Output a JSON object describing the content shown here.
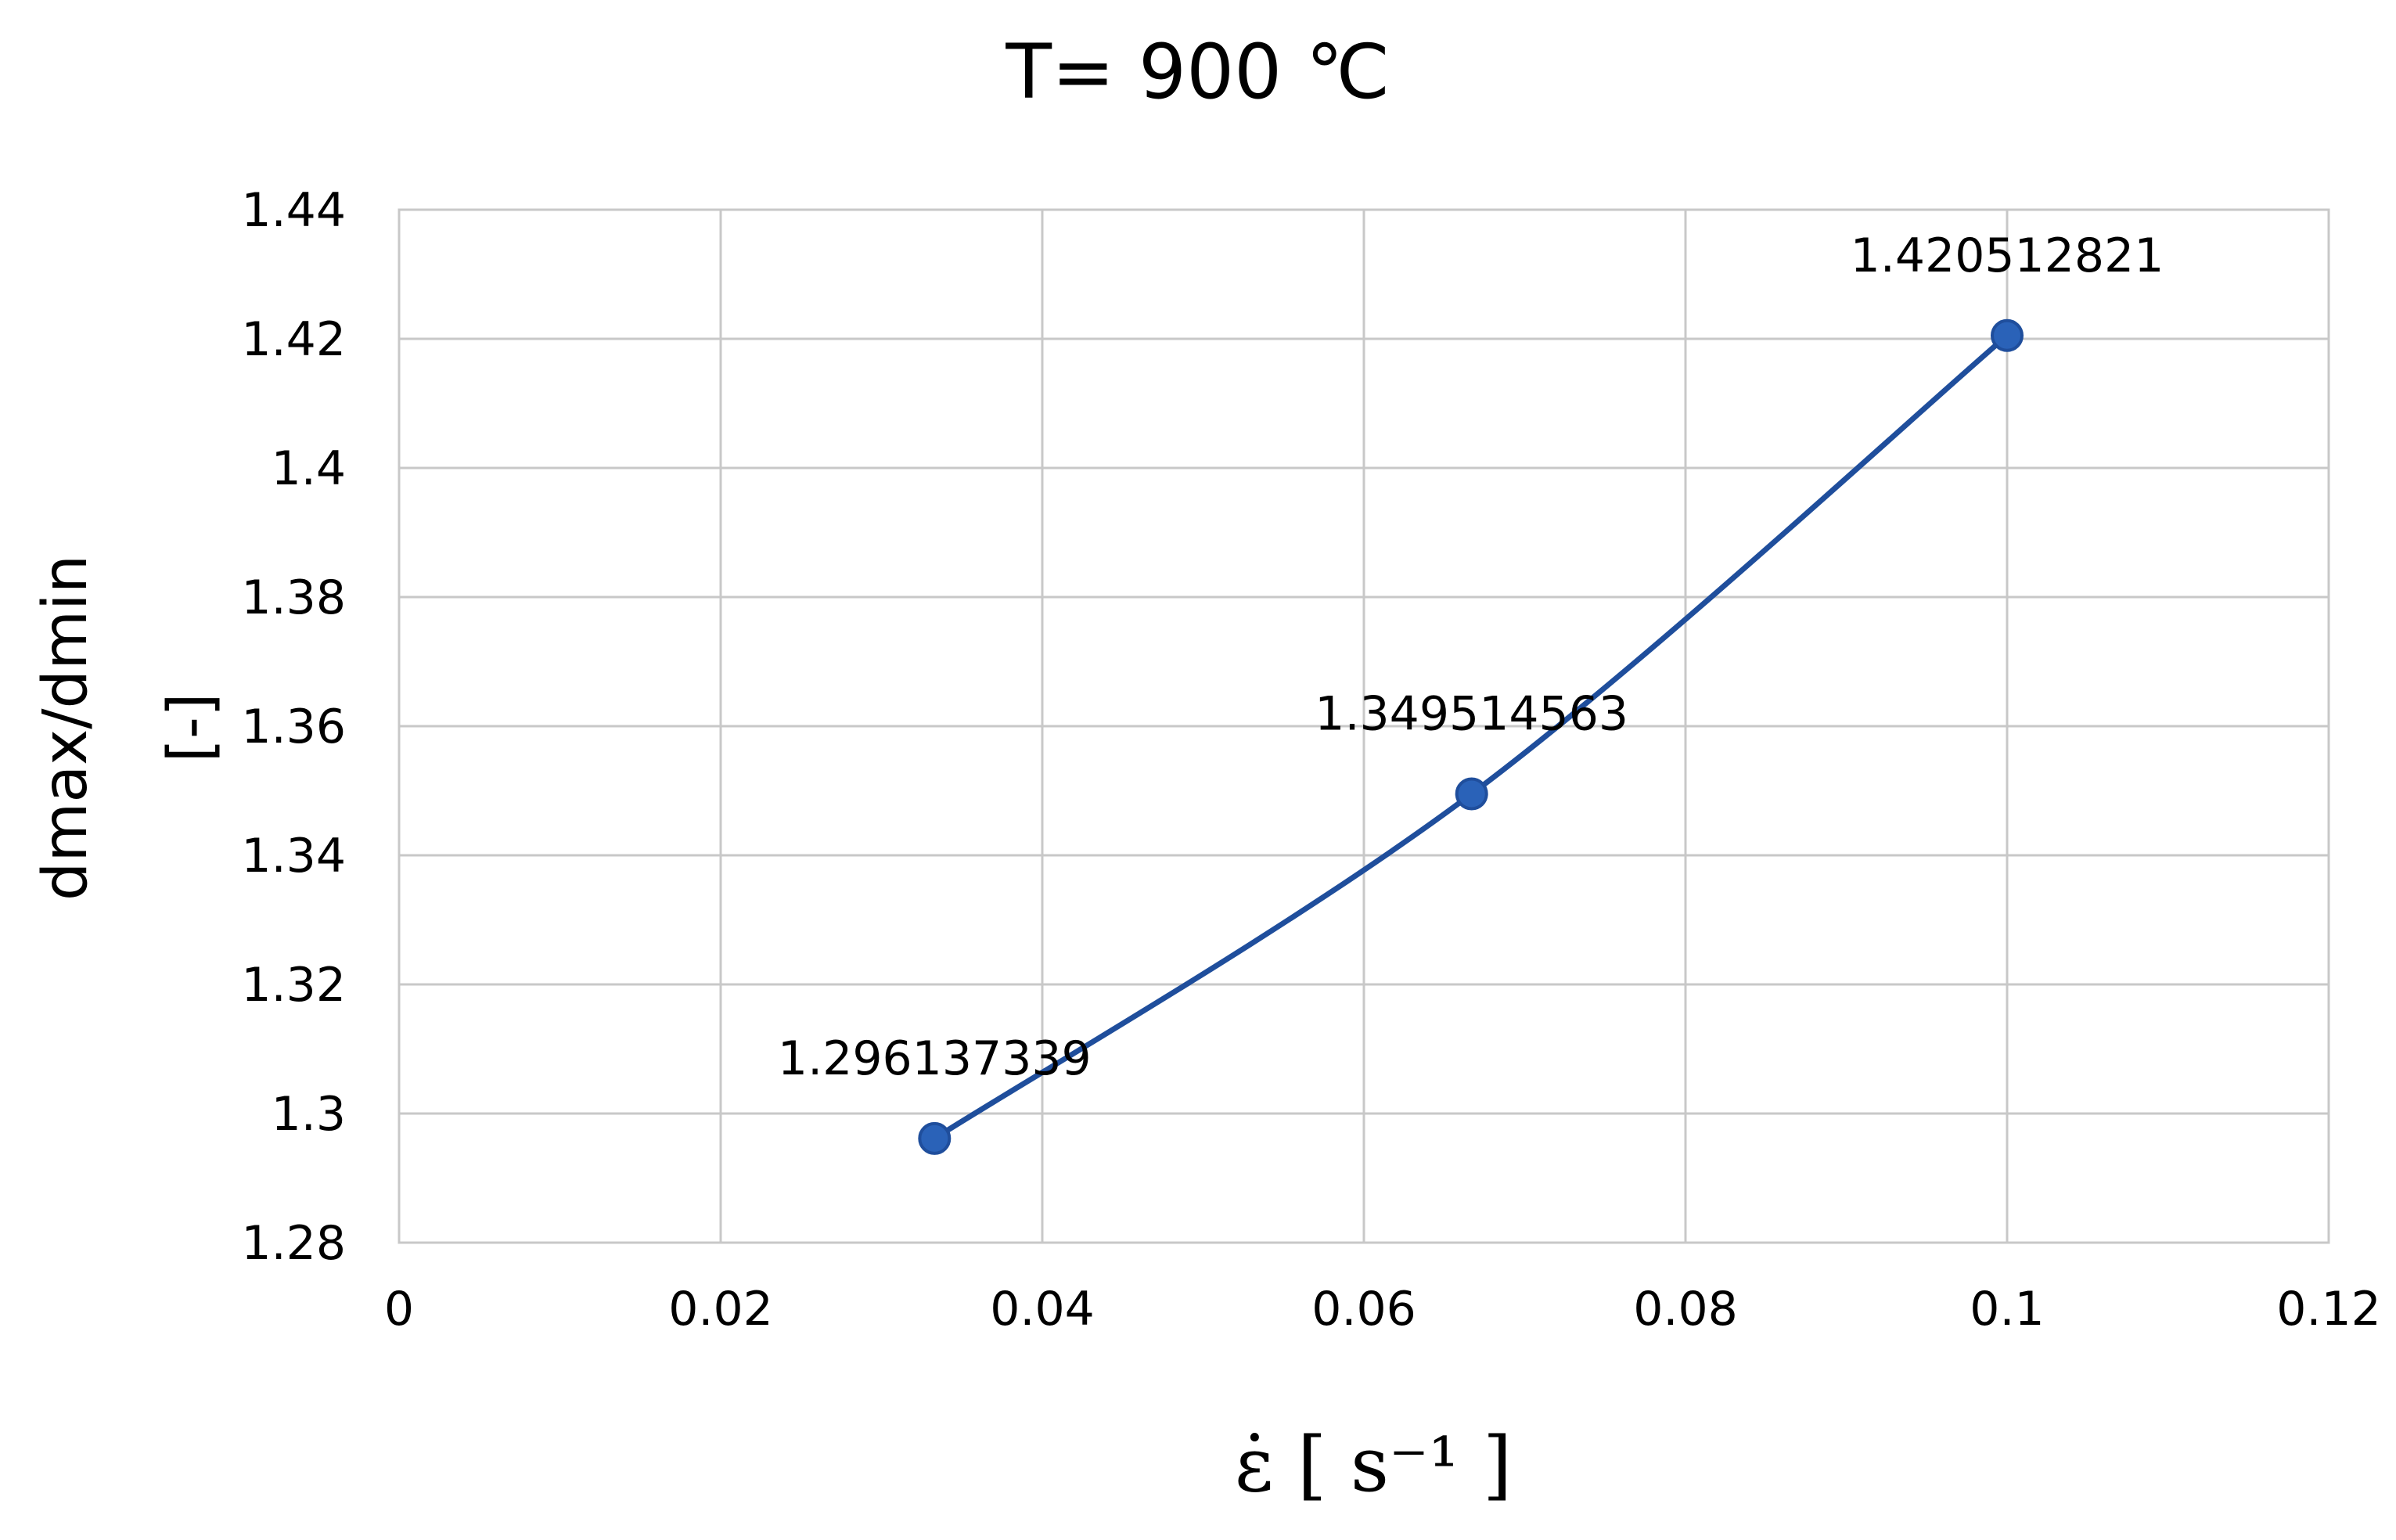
{
  "chart_data": {
    "type": "line",
    "title": "T= 900 ℃",
    "xlabel": "ε̇ [ s⁻¹ ]",
    "ylabel": "dmax/dmin",
    "ylabel_unit": "[-]",
    "xlim": [
      0,
      0.12
    ],
    "ylim": [
      1.28,
      1.44
    ],
    "x_ticks": [
      "0",
      "0.02",
      "0.04",
      "0.06",
      "0.08",
      "0.1",
      "0.12"
    ],
    "y_ticks": [
      "1.28",
      "1.3",
      "1.32",
      "1.34",
      "1.36",
      "1.38",
      "1.4",
      "1.42",
      "1.44"
    ],
    "grid": true,
    "smooth": true,
    "series": [
      {
        "x": [
          0.0333,
          0.0667,
          0.1
        ],
        "y": [
          1.296137339,
          1.349514563,
          1.420512821
        ],
        "data_labels": [
          "1.296137339",
          "1.349514563",
          "1.420512821"
        ],
        "color": "#1f4e9c",
        "marker_color": "#2a62b8"
      }
    ]
  }
}
